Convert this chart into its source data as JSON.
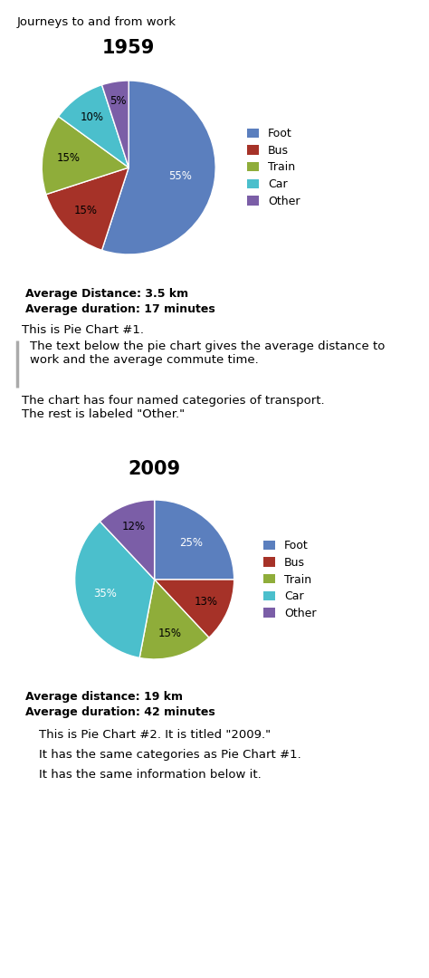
{
  "main_title": "Journeys to and from work",
  "chart1": {
    "title": "1959",
    "labels": [
      "Foot",
      "Bus",
      "Train",
      "Car",
      "Other"
    ],
    "values": [
      55,
      15,
      15,
      10,
      5
    ],
    "colors": [
      "#5b7fbe",
      "#a63228",
      "#8fad3a",
      "#4bbfcc",
      "#7b5ea7"
    ],
    "startangle": 90,
    "counterclock": false,
    "avg_distance": "Average Distance: 3.5 km",
    "avg_duration": "Average duration: 17 minutes",
    "pct_labels": [
      "55%",
      "15%",
      "15%",
      "10%",
      "5%"
    ],
    "pct_radii": [
      0.6,
      0.7,
      0.7,
      0.72,
      0.78
    ],
    "pct_colors": [
      "white",
      "black",
      "black",
      "black",
      "black"
    ]
  },
  "chart2": {
    "title": "2009",
    "labels": [
      "Foot",
      "Bus",
      "Train",
      "Car",
      "Other"
    ],
    "values": [
      25,
      13,
      15,
      35,
      12
    ],
    "colors": [
      "#5b7fbe",
      "#a63228",
      "#8fad3a",
      "#4bbfcc",
      "#7b5ea7"
    ],
    "startangle": 90,
    "counterclock": false,
    "avg_distance": "Average distance: 19 km",
    "avg_duration": "Average duration: 42 minutes",
    "pct_labels": [
      "25%",
      "13%",
      "15%",
      "35%",
      "12%"
    ],
    "pct_radii": [
      0.65,
      0.7,
      0.7,
      0.65,
      0.72
    ],
    "pct_colors": [
      "white",
      "black",
      "black",
      "white",
      "black"
    ]
  },
  "legend_labels": [
    "Foot",
    "Bus",
    "Train",
    "Car",
    "Other"
  ],
  "legend_colors": [
    "#5b7fbe",
    "#a63228",
    "#8fad3a",
    "#4bbfcc",
    "#7b5ea7"
  ],
  "desc1_line1": "This is Pie Chart #1.",
  "desc1_line2": "The text below the pie chart gives the average distance to\nwork and the average commute time.",
  "desc1_line3": "The chart has four named categories of transport.\nThe rest is labeled \"Other.\"",
  "desc2_line1": "This is Pie Chart #2. It is titled \"2009.\"",
  "desc2_line2": "It has the same categories as Pie Chart #1.",
  "desc2_line3": "It has the same information below it.",
  "bg_color": "#ffffff"
}
